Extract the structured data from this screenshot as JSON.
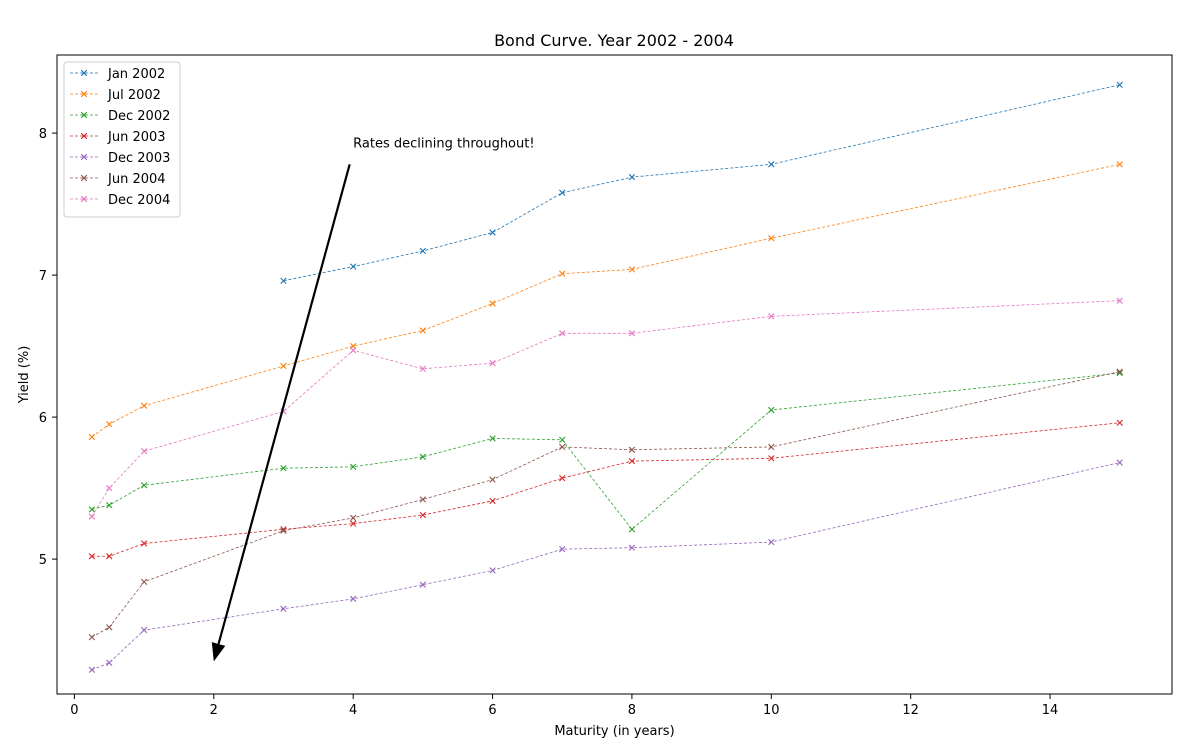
{
  "chart_data": {
    "type": "line",
    "title": "Bond Curve. Year 2002 - 2004",
    "xlabel": "Maturity (in years)",
    "ylabel": "Yield (%)",
    "xlim": [
      -0.25,
      15.75
    ],
    "ylim": [
      4.05,
      8.55
    ],
    "xticks": [
      0,
      2,
      4,
      6,
      8,
      10,
      12,
      14
    ],
    "yticks": [
      5,
      6,
      7,
      8
    ],
    "grid": false,
    "legend_position": "upper-left",
    "marker": "x",
    "line_style": "dashed",
    "series": [
      {
        "name": "Jan 2002",
        "color": "#1f77b4",
        "x": [
          3,
          4,
          5,
          6,
          7,
          8,
          10,
          15
        ],
        "y": [
          6.96,
          7.06,
          7.17,
          7.3,
          7.58,
          7.69,
          7.78,
          8.34
        ]
      },
      {
        "name": "Jul 2002",
        "color": "#ff7f0e",
        "x": [
          0.25,
          0.5,
          1,
          3,
          4,
          5,
          6,
          7,
          8,
          10,
          15
        ],
        "y": [
          5.86,
          5.95,
          6.08,
          6.36,
          6.5,
          6.61,
          6.8,
          7.01,
          7.04,
          7.26,
          7.78
        ]
      },
      {
        "name": "Dec 2002",
        "color": "#2ca02c",
        "x": [
          0.25,
          0.5,
          1,
          3,
          4,
          5,
          6,
          7,
          8,
          10,
          15
        ],
        "y": [
          5.35,
          5.38,
          5.52,
          5.64,
          5.65,
          5.72,
          5.85,
          5.84,
          5.21,
          6.05,
          6.31
        ]
      },
      {
        "name": "Jun 2003",
        "color": "#d62728",
        "x": [
          0.25,
          0.5,
          1,
          3,
          4,
          5,
          6,
          7,
          8,
          10,
          15
        ],
        "y": [
          5.02,
          5.02,
          5.11,
          5.21,
          5.25,
          5.31,
          5.41,
          5.57,
          5.69,
          5.71,
          5.96
        ]
      },
      {
        "name": "Dec 2003",
        "color": "#9467bd",
        "x": [
          0.25,
          0.5,
          1,
          3,
          4,
          5,
          6,
          7,
          8,
          10,
          15
        ],
        "y": [
          4.22,
          4.27,
          4.5,
          4.65,
          4.72,
          4.82,
          4.92,
          5.07,
          5.08,
          5.12,
          5.68
        ]
      },
      {
        "name": "Jun 2004",
        "color": "#8c564b",
        "x": [
          0.25,
          0.5,
          1,
          3,
          4,
          5,
          6,
          7,
          8,
          10,
          15
        ],
        "y": [
          4.45,
          4.52,
          4.84,
          5.2,
          5.29,
          5.42,
          5.56,
          5.79,
          5.77,
          5.79,
          6.32
        ]
      },
      {
        "name": "Dec 2004",
        "color": "#e377c2",
        "x": [
          0.25,
          0.5,
          1,
          3,
          4,
          5,
          6,
          7,
          8,
          10,
          15
        ],
        "y": [
          5.3,
          5.5,
          5.76,
          6.04,
          6.47,
          6.34,
          6.38,
          6.59,
          6.59,
          6.71,
          6.82
        ]
      }
    ],
    "annotation": {
      "text": "Rates declining throughout!",
      "text_at": [
        4.0,
        7.9
      ],
      "arrow_from": [
        3.95,
        7.78
      ],
      "arrow_to": [
        2.0,
        4.28
      ]
    }
  }
}
